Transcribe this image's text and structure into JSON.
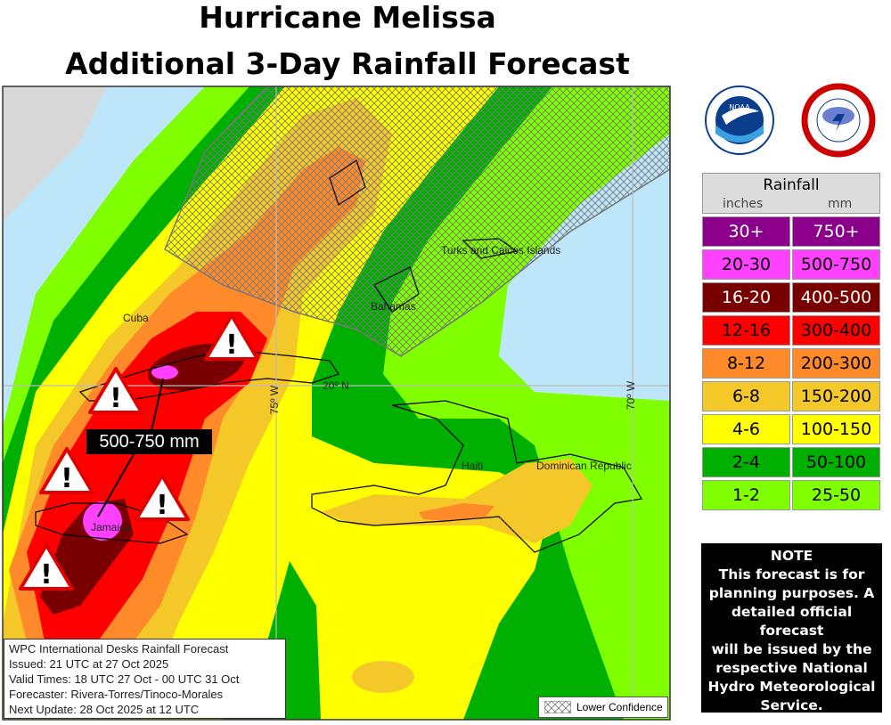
{
  "title": {
    "line1": "Hurricane Melissa",
    "line2": "Additional 3-Day Rainfall Forecast"
  },
  "map": {
    "places": [
      "Cuba",
      "Jamaica",
      "Haiti",
      "Dominican Republic",
      "Bahamas",
      "Turks and Caicos Islands"
    ],
    "gridlines": {
      "lon1": "75º W",
      "lon2": "70º W",
      "lat": "20º N"
    },
    "callout": "500-750 mm",
    "lower_confidence": "Lower Confidence",
    "warning_icon_count": 5
  },
  "info": {
    "line1": "WPC International Desks Rainfall Forecast",
    "line2": "Issued: 21 UTC at 27 Oct 2025",
    "line3": "Valid Times: 18 UTC 27 Oct - 00 UTC 31 Oct",
    "line4": "Forecaster: Rivera-Torres/Tinoco-Morales",
    "line5": "Next Update: 28 Oct 2025 at 12 UTC"
  },
  "logos": {
    "noaa": "NOAA",
    "nws": "NATIONAL WEATHER SERVICE"
  },
  "legend": {
    "title": "Rainfall",
    "col_inches": "inches",
    "col_mm": "mm",
    "rows": [
      {
        "in": "30+",
        "mm": "750+",
        "color": "#8b008b",
        "text": "#fff"
      },
      {
        "in": "20-30",
        "mm": "500-750",
        "color": "#ff40ff",
        "text": "#000"
      },
      {
        "in": "16-20",
        "mm": "400-500",
        "color": "#780000",
        "text": "#fff"
      },
      {
        "in": "12-16",
        "mm": "300-400",
        "color": "#ff0000",
        "text": "#000"
      },
      {
        "in": "8-12",
        "mm": "200-300",
        "color": "#ff8a2a",
        "text": "#000"
      },
      {
        "in": "6-8",
        "mm": "150-200",
        "color": "#f5c82a",
        "text": "#000"
      },
      {
        "in": "4-6",
        "mm": "100-150",
        "color": "#ffff00",
        "text": "#000"
      },
      {
        "in": "2-4",
        "mm": "50-100",
        "color": "#00b000",
        "text": "#000"
      },
      {
        "in": "1-2",
        "mm": "25-50",
        "color": "#7fff00",
        "text": "#000"
      }
    ]
  },
  "note": {
    "title": "NOTE",
    "lines": [
      "This forecast is for",
      "planning purposes. A",
      "detailed official forecast",
      "will be issued by the",
      "respective National",
      "Hydro Meteorological",
      "Service."
    ]
  }
}
